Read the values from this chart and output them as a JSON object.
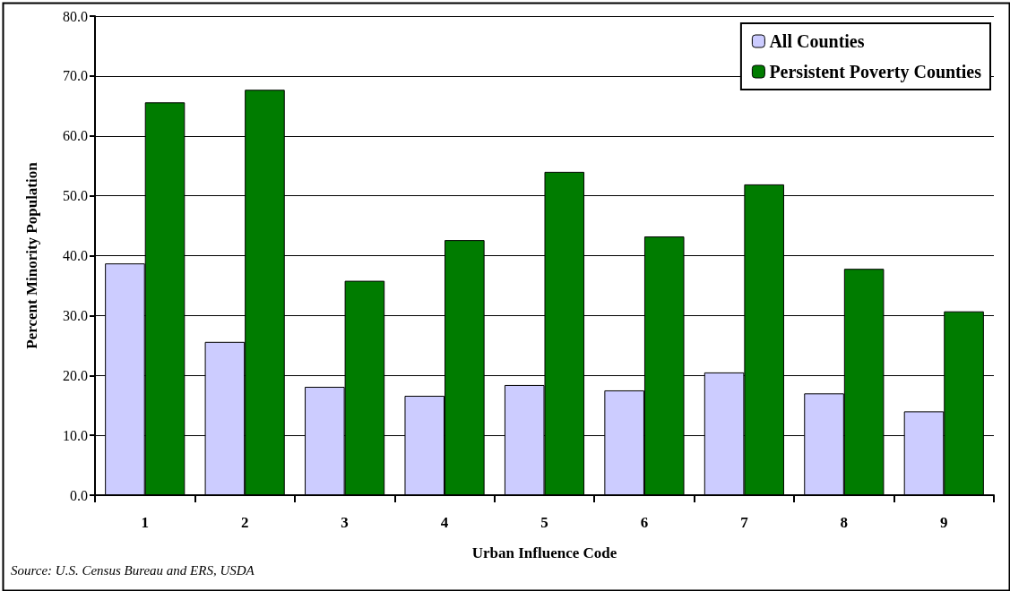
{
  "chart_data": {
    "type": "bar",
    "xlabel": "Urban Influence Code",
    "ylabel": "Percent Minority Population",
    "categories": [
      "1",
      "2",
      "3",
      "4",
      "5",
      "6",
      "7",
      "8",
      "9"
    ],
    "series": [
      {
        "name": "All Counties",
        "color": "#ccccff",
        "values": [
          38.7,
          25.6,
          18.1,
          16.6,
          18.4,
          17.5,
          20.5,
          17.0,
          14.0
        ]
      },
      {
        "name": "Persistent Poverty Counties",
        "color": "#007c00",
        "values": [
          65.6,
          67.7,
          35.8,
          42.6,
          54.0,
          43.2,
          51.9,
          37.8,
          30.7
        ]
      }
    ],
    "ylim": [
      0,
      80
    ],
    "yticks": [
      {
        "value": 0,
        "label": "0.0"
      },
      {
        "value": 10,
        "label": "10.0"
      },
      {
        "value": 20,
        "label": "20.0"
      },
      {
        "value": 30,
        "label": "30.0"
      },
      {
        "value": 40,
        "label": "40.0"
      },
      {
        "value": 50,
        "label": "50.0"
      },
      {
        "value": 60,
        "label": "60.0"
      },
      {
        "value": 70,
        "label": "70.0"
      },
      {
        "value": 80,
        "label": "80.0"
      }
    ],
    "grid": "y",
    "legend": "top right",
    "annotations": [
      "Source: U.S. Census Bureau and ERS, USDA"
    ]
  }
}
